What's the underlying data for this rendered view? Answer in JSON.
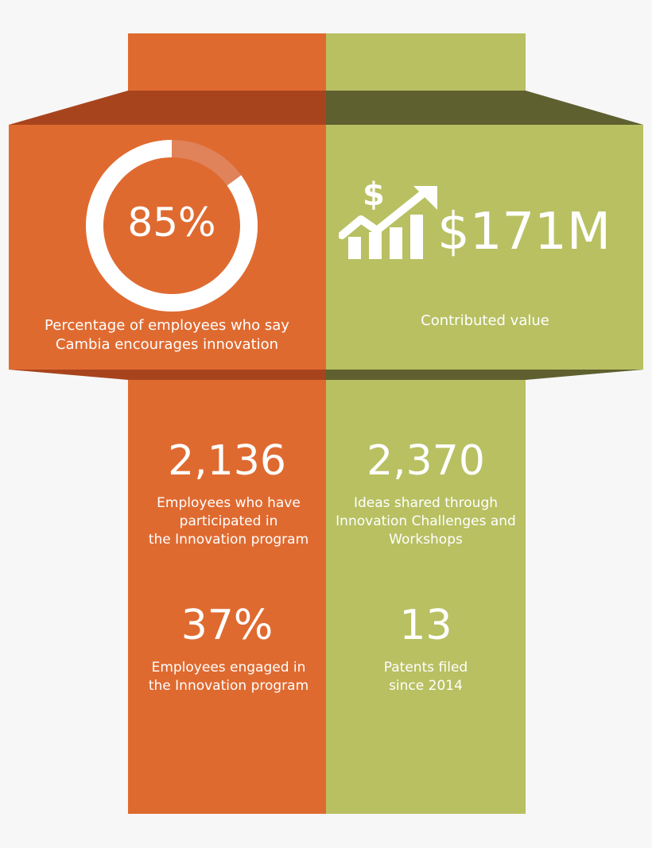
{
  "colors": {
    "orange": "#df6a30",
    "green": "#b8c062",
    "white": "#ffffff"
  },
  "left_panel": {
    "donut_percent": 85,
    "percent_label": "85%",
    "description_lines": [
      "Percentage of employees who say",
      "Cambia encourages innovation"
    ]
  },
  "right_panel": {
    "icon": "money-growth-chart-icon",
    "value": "$171M",
    "description": "Contributed value"
  },
  "stats": {
    "participants": {
      "value": "2,136",
      "lines": [
        "Employees who have",
        "participated in",
        "the Innovation program"
      ]
    },
    "ideas": {
      "value": "2,370",
      "lines": [
        "Ideas shared through",
        "Innovation Challenges and",
        "Workshops"
      ]
    },
    "engaged": {
      "value": "37%",
      "lines": [
        "Employees engaged in",
        "the Innovation program"
      ]
    },
    "patents": {
      "value": "13",
      "lines": [
        "Patents filed",
        "since 2014"
      ]
    }
  }
}
